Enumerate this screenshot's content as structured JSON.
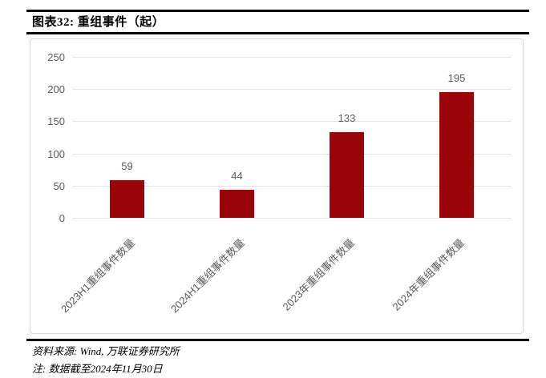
{
  "figure": {
    "title": "图表32: 重组事件（起）"
  },
  "chart_data": {
    "type": "bar",
    "categories": [
      "2023H1重组事件数量",
      "2024H1重组事件数量",
      "2023年重组事件数量",
      "2024年重组事件数量"
    ],
    "values": [
      59,
      44,
      133,
      195
    ],
    "title": "",
    "xlabel": "",
    "ylabel": "",
    "ylim": [
      0,
      250
    ],
    "yticks": [
      0,
      50,
      100,
      150,
      200,
      250
    ],
    "grid": true,
    "legend": "none",
    "data_labels": true,
    "colors": {
      "bar": "#9b0408",
      "gridline": "#e3e3e3",
      "axis_text": "#595959",
      "box_border": "#d9d9d9",
      "rule": "#000000"
    }
  },
  "footer": {
    "source_line": "资料来源: Wind, 万联证券研究所",
    "note_line": "注: 数据截至2024年11月30日"
  }
}
